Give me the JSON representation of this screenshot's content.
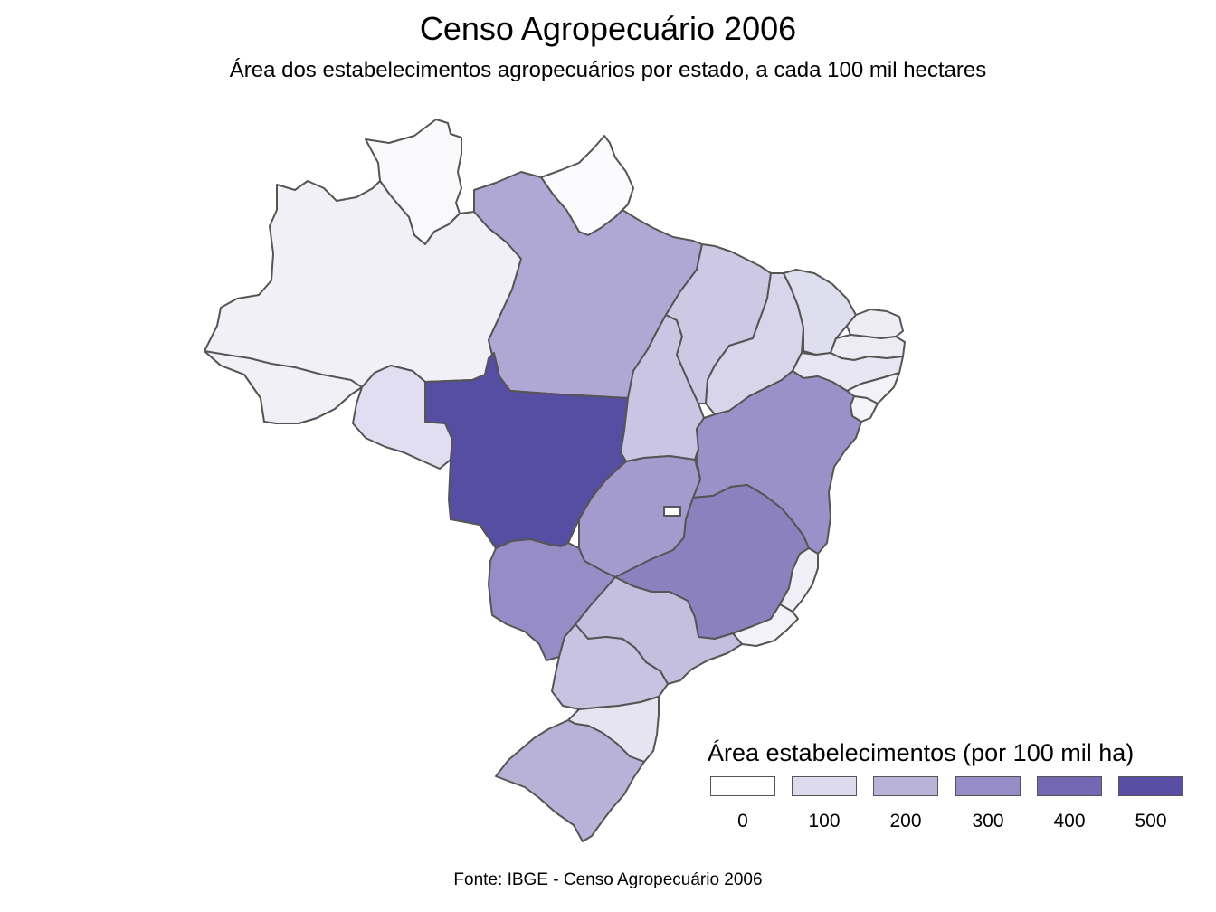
{
  "title": "Censo Agropecuário 2006",
  "subtitle": "Área dos estabelecimentos agropecuários por estado, a cada 100 mil hectares",
  "caption": "Fonte: IBGE - Censo Agropecuário 2006",
  "legend": {
    "title": "Área estabelecimentos (por 100 mil ha)",
    "items": [
      {
        "label": "0",
        "color": "#ffffff"
      },
      {
        "label": "100",
        "color": "#dcdaec"
      },
      {
        "label": "200",
        "color": "#b9b3d9"
      },
      {
        "label": "300",
        "color": "#968dc6"
      },
      {
        "label": "400",
        "color": "#7467b3"
      },
      {
        "label": "500",
        "color": "#5a4ea4"
      }
    ]
  },
  "states": [
    {
      "name": "Roraima",
      "value": 17,
      "color": "#f9f9fc"
    },
    {
      "name": "Amapá",
      "value": 9,
      "color": "#fbfbfd"
    },
    {
      "name": "Amazonas",
      "value": 36,
      "color": "#f1f0f6"
    },
    {
      "name": "Acre",
      "value": 35,
      "color": "#f1f0f6"
    },
    {
      "name": "Rondônia",
      "value": 83,
      "color": "#e0def0"
    },
    {
      "name": "Pará",
      "value": 229,
      "color": "#b0a8d4"
    },
    {
      "name": "Mato Grosso",
      "value": 480,
      "color": "#564ea3"
    },
    {
      "name": "Tocantins",
      "value": 143,
      "color": "#c9c5e2"
    },
    {
      "name": "Maranhão",
      "value": 130,
      "color": "#cdc9e4"
    },
    {
      "name": "Piauí",
      "value": 95,
      "color": "#d8d5eb"
    },
    {
      "name": "Ceará",
      "value": 79,
      "color": "#dfdeee"
    },
    {
      "name": "Rio Grande do Norte",
      "value": 32,
      "color": "#eeedf6"
    },
    {
      "name": "Paraíba",
      "value": 38,
      "color": "#edecf5"
    },
    {
      "name": "Pernambuco",
      "value": 54,
      "color": "#e8e6f2"
    },
    {
      "name": "Alagoas",
      "value": 21,
      "color": "#f3f2f8"
    },
    {
      "name": "Sergipe",
      "value": 15,
      "color": "#f5f4f9"
    },
    {
      "name": "Bahia",
      "value": 291,
      "color": "#9a91c8"
    },
    {
      "name": "Goiás",
      "value": 261,
      "color": "#a39bcd"
    },
    {
      "name": "Distrito Federal",
      "value": 3,
      "color": "#fefefe"
    },
    {
      "name": "Minas Gerais",
      "value": 330,
      "color": "#8b81bf"
    },
    {
      "name": "Espírito Santo",
      "value": 28,
      "color": "#f0eff7"
    },
    {
      "name": "Rio de Janeiro",
      "value": 21,
      "color": "#f3f2f8"
    },
    {
      "name": "Mato Grosso do Sul",
      "value": 302,
      "color": "#968dc6"
    },
    {
      "name": "São Paulo",
      "value": 169,
      "color": "#c4bfdf"
    },
    {
      "name": "Paraná",
      "value": 153,
      "color": "#c8c3e1"
    },
    {
      "name": "Santa Catarina",
      "value": 60,
      "color": "#e6e4f1"
    },
    {
      "name": "Rio Grande do Sul",
      "value": 203,
      "color": "#b8b2d8"
    }
  ]
}
